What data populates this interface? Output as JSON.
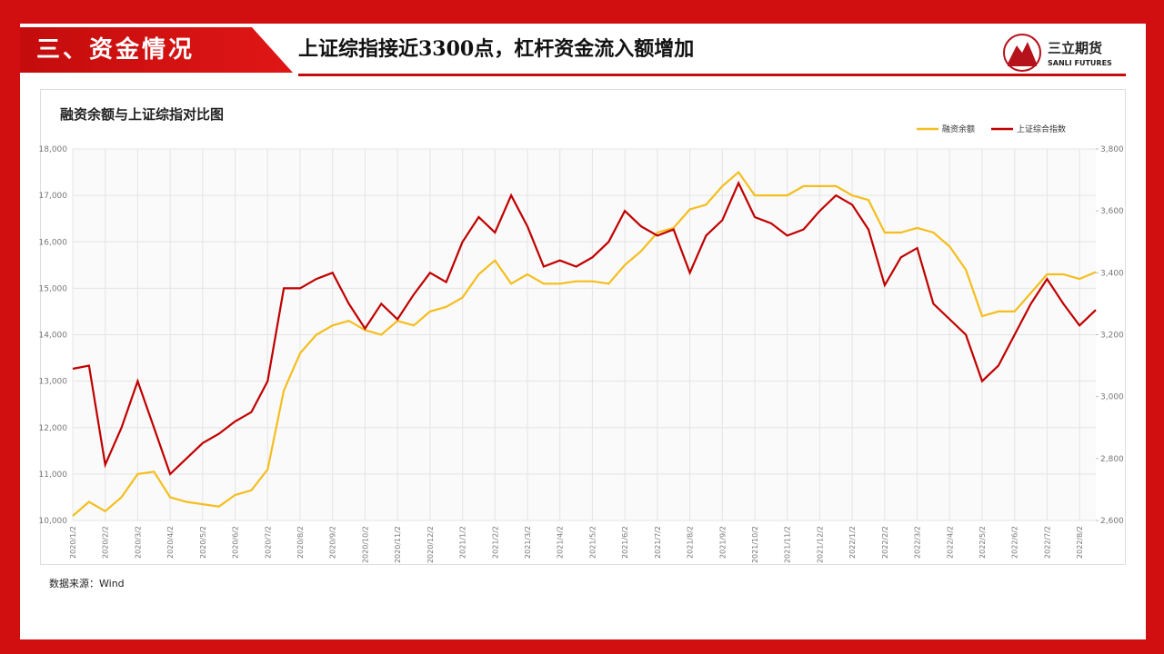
{
  "header": {
    "section": "三、资金情况",
    "title": "上证综指接近3300点，杠杆资金流入额增加",
    "logo_cn": "三立期货",
    "logo_en": "SANLI FUTURES"
  },
  "chart_data": {
    "type": "line",
    "title": "融资余额与上证综指对比图",
    "categories": [
      "2020/1/2",
      null,
      "2020/2/2",
      null,
      "2020/3/2",
      null,
      "2020/4/2",
      null,
      "2020/5/2",
      null,
      "2020/6/2",
      null,
      "2020/7/2",
      null,
      "2020/8/2",
      null,
      "2020/9/2",
      null,
      "2020/10/2",
      null,
      "2020/11/2",
      null,
      "2020/12/2",
      null,
      "2021/1/2",
      null,
      "2021/2/2",
      null,
      "2021/3/2",
      null,
      "2021/4/2",
      null,
      "2021/5/2",
      null,
      "2021/6/2",
      null,
      "2021/7/2",
      null,
      "2021/8/2",
      null,
      "2021/9/2",
      null,
      "2021/10/2",
      null,
      "2021/11/2",
      null,
      "2021/12/2",
      null,
      "2022/1/2",
      null,
      "2022/2/2",
      null,
      "2022/3/2",
      null,
      "2022/4/2",
      null,
      "2022/5/2",
      null,
      "2022/6/2",
      null,
      "2022/7/2",
      null,
      "2022/8/2",
      null
    ],
    "series": [
      {
        "name": "融资余额",
        "color": "#f5be1e",
        "values": [
          10100,
          10400,
          10200,
          10500,
          11000,
          11050,
          10500,
          10400,
          10350,
          10300,
          10550,
          10650,
          11100,
          12800,
          13600,
          14000,
          14200,
          14300,
          14100,
          14000,
          14300,
          14200,
          14500,
          14600,
          14800,
          15300,
          15600,
          15100,
          15300,
          15100,
          15100,
          15150,
          15150,
          15100,
          15500,
          15800,
          16200,
          16300,
          16700,
          16800,
          17200,
          17500,
          17000,
          17000,
          17000,
          17200,
          17200,
          17200,
          17000,
          16900,
          16200,
          16200,
          16300,
          16200,
          15900,
          15400,
          14400,
          14500,
          14500,
          14900,
          15300,
          15300,
          15200,
          15350
        ]
      },
      {
        "name": "上证综合指数",
        "color": "#c00000",
        "axis": "y2",
        "values": [
          3090,
          3100,
          2780,
          2900,
          3050,
          2900,
          2750,
          2800,
          2850,
          2880,
          2920,
          2950,
          3050,
          3350,
          3350,
          3380,
          3400,
          3300,
          3220,
          3300,
          3250,
          3330,
          3400,
          3370,
          3500,
          3580,
          3530,
          3650,
          3550,
          3420,
          3440,
          3420,
          3450,
          3500,
          3600,
          3550,
          3520,
          3540,
          3400,
          3520,
          3570,
          3690,
          3580,
          3560,
          3520,
          3540,
          3600,
          3650,
          3620,
          3540,
          3360,
          3450,
          3480,
          3300,
          3250,
          3200,
          3050,
          3100,
          3200,
          3300,
          3380,
          3300,
          3230,
          3280
        ]
      }
    ],
    "ylim": [
      10000,
      18000
    ],
    "yticks": [
      {
        "value": 10000,
        "label": "10,000"
      },
      {
        "value": 11000,
        "label": "11,000"
      },
      {
        "value": 12000,
        "label": "12,000"
      },
      {
        "value": 13000,
        "label": "13,000"
      },
      {
        "value": 14000,
        "label": "14,000"
      },
      {
        "value": 15000,
        "label": "15,000"
      },
      {
        "value": 16000,
        "label": "16,000"
      },
      {
        "value": 17000,
        "label": "17,000"
      },
      {
        "value": 18000,
        "label": "18,000"
      }
    ],
    "y2lim": [
      2600,
      3800
    ],
    "y2ticks": [
      {
        "value": 2600,
        "label": "2,600"
      },
      {
        "value": 2800,
        "label": "2,800"
      },
      {
        "value": 3000,
        "label": "3,000"
      },
      {
        "value": 3200,
        "label": "3,200"
      },
      {
        "value": 3400,
        "label": "3,400"
      },
      {
        "value": 3600,
        "label": "3,600"
      },
      {
        "value": 3800,
        "label": "3,800"
      }
    ],
    "grid": true,
    "legend": "top-right"
  },
  "source": "数据来源：Wind"
}
